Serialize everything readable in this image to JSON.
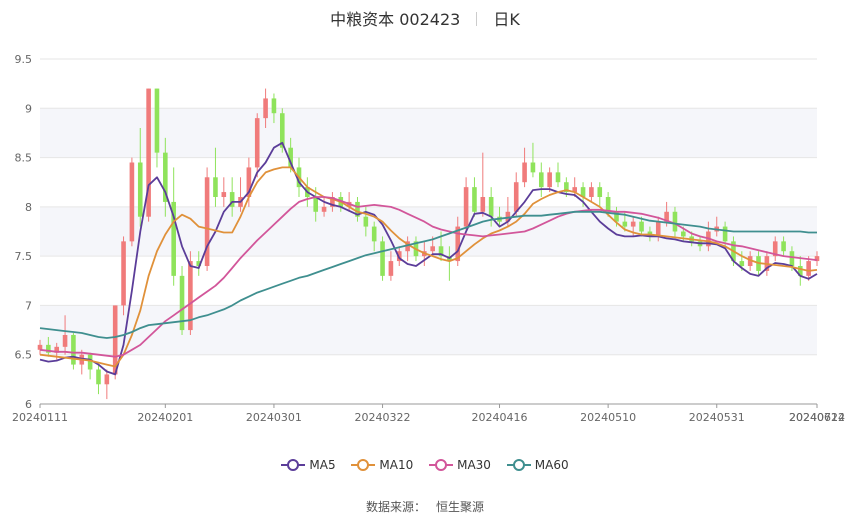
{
  "header": {
    "title": "中粮资本 002423",
    "period": "日K"
  },
  "legend": [
    {
      "name": "MA5",
      "color": "#5b3d99"
    },
    {
      "name": "MA10",
      "color": "#e0913a"
    },
    {
      "name": "MA30",
      "color": "#d2569a"
    },
    {
      "name": "MA60",
      "color": "#3f8f8f"
    }
  ],
  "source": {
    "label": "数据来源：",
    "value": "恒生聚源"
  },
  "colors": {
    "up": "#f07b7b",
    "down": "#8fe35b",
    "grid": "#e6e6e6",
    "band": "#f5f6fa"
  },
  "chart_data": {
    "type": "candlestick",
    "title": "中粮资本 002423",
    "ylim": [
      6,
      9.5
    ],
    "yticks": [
      "6",
      "6.5",
      "7",
      "7.5",
      "8",
      "8.5",
      "9",
      "9.5"
    ],
    "xticks": [
      "20240111",
      "20240201",
      "20240301",
      "20240322",
      "20240416",
      "20240510",
      "20240531",
      "20240624",
      "20240712"
    ],
    "grid": true,
    "legend_position": "bottom",
    "series": [
      {
        "name": "MA5",
        "values": [
          6.45,
          6.43,
          6.44,
          6.47,
          6.48,
          6.46,
          6.45,
          6.4,
          6.33,
          6.3,
          6.6,
          7.15,
          7.75,
          8.22,
          8.3,
          8.15,
          7.9,
          7.6,
          7.4,
          7.38,
          7.6,
          7.75,
          7.95,
          8.05,
          8.05,
          8.15,
          8.35,
          8.45,
          8.6,
          8.65,
          8.45,
          8.25,
          8.15,
          8.1,
          8.05,
          8.02,
          8.0,
          7.96,
          7.92,
          7.95,
          7.92,
          7.82,
          7.66,
          7.48,
          7.42,
          7.4,
          7.46,
          7.52,
          7.52,
          7.48,
          7.55,
          7.75,
          7.93,
          7.94,
          7.9,
          7.8,
          7.85,
          7.95,
          8.05,
          8.17,
          8.18,
          8.18,
          8.15,
          8.13,
          8.12,
          8.05,
          7.95,
          7.85,
          7.78,
          7.72,
          7.7,
          7.7,
          7.71,
          7.7,
          7.7,
          7.68,
          7.67,
          7.65,
          7.64,
          7.63,
          7.63,
          7.62,
          7.58,
          7.45,
          7.38,
          7.32,
          7.3,
          7.38,
          7.43,
          7.42,
          7.4,
          7.3,
          7.27,
          7.32
        ]
      },
      {
        "name": "MA10",
        "values": [
          6.5,
          6.49,
          6.48,
          6.47,
          6.46,
          6.45,
          6.44,
          6.42,
          6.4,
          6.38,
          6.5,
          6.7,
          6.95,
          7.3,
          7.55,
          7.72,
          7.85,
          7.92,
          7.88,
          7.8,
          7.78,
          7.76,
          7.74,
          7.74,
          7.9,
          8.1,
          8.25,
          8.35,
          8.38,
          8.4,
          8.4,
          8.3,
          8.2,
          8.15,
          8.1,
          8.08,
          8.05,
          8.0,
          7.95,
          7.93,
          7.9,
          7.85,
          7.76,
          7.68,
          7.62,
          7.57,
          7.53,
          7.5,
          7.47,
          7.45,
          7.48,
          7.55,
          7.62,
          7.68,
          7.73,
          7.76,
          7.8,
          7.85,
          7.93,
          8.03,
          8.08,
          8.12,
          8.15,
          8.17,
          8.15,
          8.1,
          8.05,
          8.0,
          7.92,
          7.84,
          7.77,
          7.74,
          7.72,
          7.72,
          7.71,
          7.7,
          7.69,
          7.68,
          7.67,
          7.66,
          7.65,
          7.63,
          7.6,
          7.55,
          7.5,
          7.46,
          7.43,
          7.42,
          7.41,
          7.4,
          7.39,
          7.37,
          7.35,
          7.36
        ]
      },
      {
        "name": "MA30",
        "values": [
          6.55,
          6.54,
          6.53,
          6.53,
          6.52,
          6.52,
          6.51,
          6.5,
          6.49,
          6.48,
          6.5,
          6.55,
          6.6,
          6.68,
          6.76,
          6.84,
          6.9,
          6.96,
          7.02,
          7.08,
          7.14,
          7.2,
          7.28,
          7.38,
          7.48,
          7.57,
          7.66,
          7.74,
          7.82,
          7.9,
          7.98,
          8.05,
          8.08,
          8.1,
          8.1,
          8.09,
          8.06,
          8.03,
          8.0,
          8.01,
          8.02,
          8.01,
          8.0,
          7.97,
          7.93,
          7.89,
          7.85,
          7.8,
          7.77,
          7.75,
          7.73,
          7.72,
          7.71,
          7.7,
          7.71,
          7.72,
          7.73,
          7.74,
          7.75,
          7.78,
          7.82,
          7.86,
          7.9,
          7.93,
          7.95,
          7.96,
          7.97,
          7.97,
          7.96,
          7.95,
          7.95,
          7.94,
          7.93,
          7.91,
          7.89,
          7.86,
          7.83,
          7.78,
          7.73,
          7.7,
          7.68,
          7.65,
          7.63,
          7.61,
          7.6,
          7.58,
          7.56,
          7.54,
          7.52,
          7.5,
          7.49,
          7.48,
          7.47,
          7.46
        ]
      },
      {
        "name": "MA60",
        "values": [
          6.77,
          6.76,
          6.75,
          6.74,
          6.73,
          6.72,
          6.7,
          6.68,
          6.67,
          6.68,
          6.7,
          6.73,
          6.77,
          6.8,
          6.81,
          6.82,
          6.83,
          6.84,
          6.85,
          6.88,
          6.9,
          6.93,
          6.96,
          7.0,
          7.05,
          7.09,
          7.13,
          7.16,
          7.19,
          7.22,
          7.25,
          7.28,
          7.3,
          7.33,
          7.36,
          7.39,
          7.42,
          7.45,
          7.48,
          7.51,
          7.53,
          7.55,
          7.57,
          7.59,
          7.61,
          7.63,
          7.65,
          7.67,
          7.7,
          7.73,
          7.76,
          7.79,
          7.82,
          7.85,
          7.87,
          7.88,
          7.89,
          7.9,
          7.91,
          7.91,
          7.91,
          7.92,
          7.93,
          7.94,
          7.95,
          7.95,
          7.95,
          7.95,
          7.94,
          7.93,
          7.92,
          7.9,
          7.88,
          7.86,
          7.85,
          7.84,
          7.83,
          7.82,
          7.81,
          7.8,
          7.78,
          7.77,
          7.76,
          7.75,
          7.75,
          7.75,
          7.75,
          7.75,
          7.75,
          7.75,
          7.75,
          7.75,
          7.74,
          7.74
        ]
      }
    ],
    "candles": [
      [
        6.55,
        6.6,
        6.5,
        6.65
      ],
      [
        6.6,
        6.52,
        6.48,
        6.68
      ],
      [
        6.52,
        6.58,
        6.45,
        6.62
      ],
      [
        6.58,
        6.7,
        6.5,
        6.9
      ],
      [
        6.7,
        6.4,
        6.35,
        6.72
      ],
      [
        6.4,
        6.5,
        6.3,
        6.55
      ],
      [
        6.5,
        6.35,
        6.25,
        6.52
      ],
      [
        6.35,
        6.2,
        6.1,
        6.4
      ],
      [
        6.2,
        6.3,
        6.05,
        6.35
      ],
      [
        6.3,
        7.0,
        6.25,
        7.0
      ],
      [
        7.0,
        7.65,
        6.9,
        7.7
      ],
      [
        7.65,
        8.45,
        7.6,
        8.5
      ],
      [
        8.45,
        7.9,
        7.8,
        8.8
      ],
      [
        7.9,
        9.2,
        7.85,
        9.2
      ],
      [
        9.2,
        8.55,
        8.4,
        9.2
      ],
      [
        8.55,
        8.05,
        7.9,
        8.7
      ],
      [
        8.05,
        7.3,
        7.2,
        8.4
      ],
      [
        7.3,
        6.75,
        6.7,
        7.4
      ],
      [
        6.75,
        7.45,
        6.7,
        7.55
      ],
      [
        7.45,
        7.4,
        7.3,
        7.55
      ],
      [
        7.4,
        8.3,
        7.35,
        8.4
      ],
      [
        8.3,
        8.1,
        8.0,
        8.6
      ],
      [
        8.1,
        8.15,
        8.0,
        8.3
      ],
      [
        8.15,
        8.0,
        7.9,
        8.3
      ],
      [
        8.0,
        8.1,
        7.95,
        8.3
      ],
      [
        8.1,
        8.4,
        8.0,
        8.5
      ],
      [
        8.4,
        8.9,
        8.3,
        8.95
      ],
      [
        8.9,
        9.1,
        8.8,
        9.2
      ],
      [
        9.1,
        8.95,
        8.85,
        9.15
      ],
      [
        8.95,
        8.6,
        8.55,
        9.0
      ],
      [
        8.6,
        8.4,
        8.35,
        8.7
      ],
      [
        8.4,
        8.2,
        8.1,
        8.5
      ],
      [
        8.2,
        8.1,
        8.0,
        8.3
      ],
      [
        8.1,
        7.95,
        7.85,
        8.2
      ],
      [
        7.95,
        8.0,
        7.9,
        8.1
      ],
      [
        8.0,
        8.1,
        7.95,
        8.15
      ],
      [
        8.1,
        8.0,
        7.95,
        8.15
      ],
      [
        8.0,
        8.05,
        7.95,
        8.15
      ],
      [
        8.05,
        7.9,
        7.85,
        8.1
      ],
      [
        7.9,
        7.8,
        7.7,
        8.0
      ],
      [
        7.8,
        7.65,
        7.55,
        7.85
      ],
      [
        7.65,
        7.3,
        7.25,
        7.7
      ],
      [
        7.3,
        7.45,
        7.25,
        7.55
      ],
      [
        7.45,
        7.55,
        7.4,
        7.6
      ],
      [
        7.55,
        7.65,
        7.45,
        7.7
      ],
      [
        7.65,
        7.5,
        7.45,
        7.7
      ],
      [
        7.5,
        7.55,
        7.4,
        7.65
      ],
      [
        7.55,
        7.6,
        7.5,
        7.7
      ],
      [
        7.6,
        7.5,
        7.45,
        7.75
      ],
      [
        7.5,
        7.45,
        7.25,
        7.6
      ],
      [
        7.45,
        7.8,
        7.4,
        7.9
      ],
      [
        7.8,
        8.2,
        7.75,
        8.3
      ],
      [
        8.2,
        7.95,
        7.9,
        8.3
      ],
      [
        7.95,
        8.1,
        7.9,
        8.55
      ],
      [
        8.1,
        7.9,
        7.8,
        8.2
      ],
      [
        7.9,
        7.85,
        7.8,
        8.0
      ],
      [
        7.85,
        7.95,
        7.8,
        8.1
      ],
      [
        7.95,
        8.25,
        7.9,
        8.35
      ],
      [
        8.25,
        8.45,
        8.2,
        8.6
      ],
      [
        8.45,
        8.35,
        8.3,
        8.65
      ],
      [
        8.35,
        8.2,
        8.1,
        8.45
      ],
      [
        8.2,
        8.35,
        8.15,
        8.4
      ],
      [
        8.35,
        8.25,
        8.2,
        8.45
      ],
      [
        8.25,
        8.15,
        8.1,
        8.3
      ],
      [
        8.15,
        8.2,
        8.1,
        8.3
      ],
      [
        8.2,
        8.1,
        8.0,
        8.25
      ],
      [
        8.1,
        8.2,
        8.05,
        8.25
      ],
      [
        8.2,
        8.1,
        8.0,
        8.25
      ],
      [
        8.1,
        7.95,
        7.9,
        8.15
      ],
      [
        7.95,
        7.85,
        7.8,
        8.0
      ],
      [
        7.85,
        7.8,
        7.75,
        7.95
      ],
      [
        7.8,
        7.85,
        7.7,
        7.9
      ],
      [
        7.85,
        7.75,
        7.7,
        7.9
      ],
      [
        7.75,
        7.7,
        7.65,
        7.8
      ],
      [
        7.7,
        7.85,
        7.65,
        7.9
      ],
      [
        7.85,
        7.95,
        7.8,
        8.05
      ],
      [
        7.95,
        7.75,
        7.7,
        8.0
      ],
      [
        7.75,
        7.7,
        7.65,
        7.8
      ],
      [
        7.7,
        7.65,
        7.6,
        7.75
      ],
      [
        7.65,
        7.6,
        7.55,
        7.7
      ],
      [
        7.6,
        7.75,
        7.55,
        7.85
      ],
      [
        7.75,
        7.8,
        7.7,
        7.9
      ],
      [
        7.8,
        7.65,
        7.6,
        7.85
      ],
      [
        7.65,
        7.45,
        7.4,
        7.7
      ],
      [
        7.45,
        7.4,
        7.35,
        7.55
      ],
      [
        7.4,
        7.5,
        7.35,
        7.55
      ],
      [
        7.5,
        7.35,
        7.3,
        7.55
      ],
      [
        7.35,
        7.5,
        7.3,
        7.55
      ],
      [
        7.5,
        7.65,
        7.45,
        7.7
      ],
      [
        7.65,
        7.55,
        7.5,
        7.7
      ],
      [
        7.55,
        7.4,
        7.35,
        7.6
      ],
      [
        7.4,
        7.3,
        7.2,
        7.5
      ],
      [
        7.3,
        7.45,
        7.25,
        7.5
      ],
      [
        7.45,
        7.5,
        7.4,
        7.55
      ]
    ]
  }
}
